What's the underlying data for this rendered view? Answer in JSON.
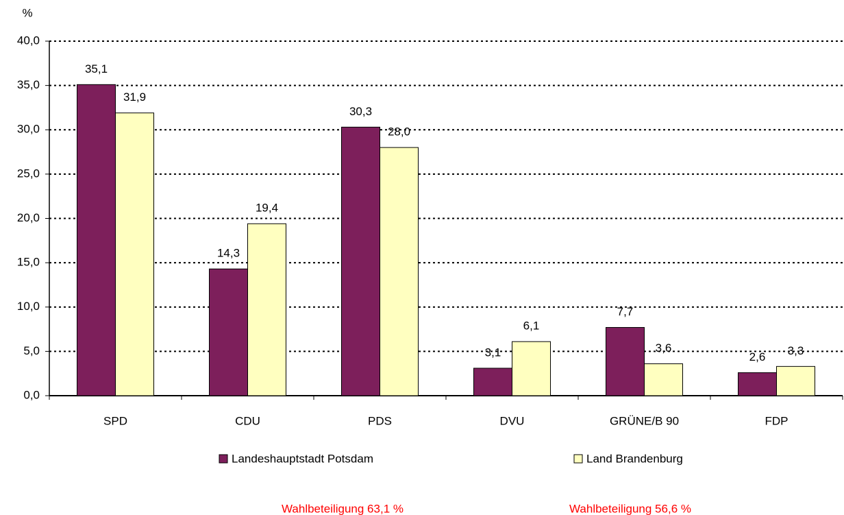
{
  "chart_data": {
    "type": "bar",
    "y_label": "%",
    "categories": [
      "SPD",
      "CDU",
      "PDS",
      "DVU",
      "GRÜNE/B 90",
      "FDP"
    ],
    "series": [
      {
        "name": "Landeshauptstadt Potsdam",
        "color": "#7d1f5b",
        "values": [
          35.1,
          14.3,
          30.3,
          3.1,
          7.7,
          2.6
        ],
        "value_labels": [
          "35,1",
          "14,3",
          "30,3",
          "3,1",
          "7,7",
          "2,6"
        ]
      },
      {
        "name": "Land Brandenburg",
        "color": "#ffffc0",
        "values": [
          31.9,
          19.4,
          28.0,
          6.1,
          3.6,
          3.3
        ],
        "value_labels": [
          "31,9",
          "19,4",
          "28,0",
          "6,1",
          "3,6",
          "3,3"
        ]
      }
    ],
    "ylim": [
      0,
      40
    ],
    "yticks": [
      {
        "value": 0,
        "label": "0,0"
      },
      {
        "value": 5,
        "label": "5,0"
      },
      {
        "value": 10,
        "label": "10,0"
      },
      {
        "value": 15,
        "label": "15,0"
      },
      {
        "value": 20,
        "label": "20,0"
      },
      {
        "value": 25,
        "label": "25,0"
      },
      {
        "value": 30,
        "label": "30,0"
      },
      {
        "value": 35,
        "label": "35,0"
      },
      {
        "value": 40,
        "label": "40,0"
      }
    ],
    "grid": true,
    "legend": "bottom",
    "annotations": [
      "Wahlbeteiligung  63,1 %",
      "Wahlbeteiligung  56,6 %"
    ]
  }
}
